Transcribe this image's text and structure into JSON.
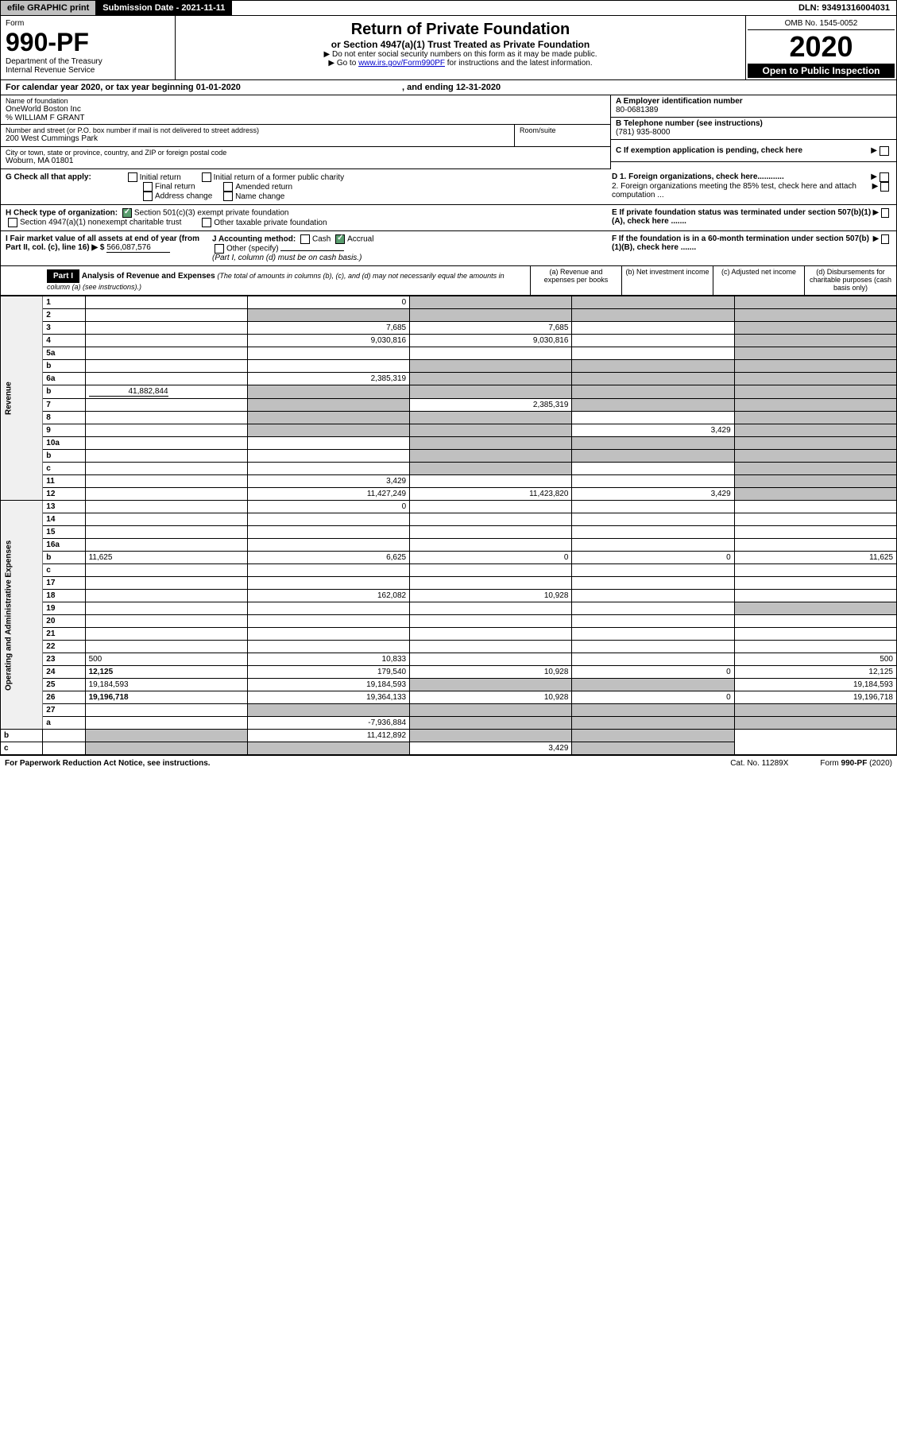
{
  "topbar": {
    "efile": "efile GRAPHIC print",
    "submission": "Submission Date - 2021-11-11",
    "dln": "DLN: 93491316004031"
  },
  "header": {
    "form_word": "Form",
    "form_num": "990-PF",
    "dept": "Department of the Treasury",
    "irs": "Internal Revenue Service",
    "title": "Return of Private Foundation",
    "subtitle": "or Section 4947(a)(1) Trust Treated as Private Foundation",
    "instr1": "▶ Do not enter social security numbers on this form as it may be made public.",
    "instr2_pre": "▶ Go to ",
    "instr2_link": "www.irs.gov/Form990PF",
    "instr2_post": " for instructions and the latest information.",
    "omb": "OMB No. 1545-0052",
    "year": "2020",
    "inspection": "Open to Public Inspection"
  },
  "calyear": {
    "text": "For calendar year 2020, or tax year beginning 01-01-2020",
    "mid": ", and ending 12-31-2020"
  },
  "entity": {
    "name_label": "Name of foundation",
    "name": "OneWorld Boston Inc",
    "co": "% WILLIAM F GRANT",
    "addr_label": "Number and street (or P.O. box number if mail is not delivered to street address)",
    "addr": "200 West Cummings Park",
    "room_label": "Room/suite",
    "city_label": "City or town, state or province, country, and ZIP or foreign postal code",
    "city": "Woburn, MA  01801",
    "a_label": "A Employer identification number",
    "ein": "80-0681389",
    "b_label": "B Telephone number (see instructions)",
    "phone": "(781) 935-8000",
    "c_label": "C If exemption application is pending, check here"
  },
  "checks": {
    "g": "G Check all that apply:",
    "g_opts": [
      "Initial return",
      "Initial return of a former public charity",
      "Final return",
      "Amended return",
      "Address change",
      "Name change"
    ],
    "h": "H Check type of organization:",
    "h1": "Section 501(c)(3) exempt private foundation",
    "h2": "Section 4947(a)(1) nonexempt charitable trust",
    "h3": "Other taxable private foundation",
    "i": "I Fair market value of all assets at end of year (from Part II, col. (c), line 16) ▶ $",
    "i_val": "566,087,576",
    "j": "J Accounting method:",
    "j_cash": "Cash",
    "j_accrual": "Accrual",
    "j_other": "Other (specify)",
    "j_note": "(Part I, column (d) must be on cash basis.)",
    "d1": "D 1. Foreign organizations, check here............",
    "d2": "2. Foreign organizations meeting the 85% test, check here and attach computation ...",
    "e": "E  If private foundation status was terminated under section 507(b)(1)(A), check here .......",
    "f": "F  If the foundation is in a 60-month termination under section 507(b)(1)(B), check here .......",
    "arrow": "▶"
  },
  "part1": {
    "label": "Part I",
    "title": "Analysis of Revenue and Expenses",
    "note": "(The total of amounts in columns (b), (c), and (d) may not necessarily equal the amounts in column (a) (see instructions).)",
    "col_a": "(a) Revenue and expenses per books",
    "col_b": "(b) Net investment income",
    "col_c": "(c) Adjusted net income",
    "col_d": "(d) Disbursements for charitable purposes (cash basis only)"
  },
  "side": {
    "revenue": "Revenue",
    "opex": "Operating and Administrative Expenses"
  },
  "lines": [
    {
      "n": "1",
      "d": "",
      "a": "0",
      "b": "",
      "c": "",
      "sb": true,
      "sc": true,
      "sd": true
    },
    {
      "n": "2",
      "d": "",
      "a": "",
      "b": "",
      "c": "",
      "sa": true,
      "sb": true,
      "sc": true,
      "sd": true,
      "bold_not": true
    },
    {
      "n": "3",
      "d": "",
      "a": "7,685",
      "b": "7,685",
      "c": "",
      "sd": true
    },
    {
      "n": "4",
      "d": "",
      "a": "9,030,816",
      "b": "9,030,816",
      "c": "",
      "sd": true
    },
    {
      "n": "5a",
      "d": "",
      "a": "",
      "b": "",
      "c": "",
      "sd": true
    },
    {
      "n": "b",
      "d": "",
      "a": "",
      "b": "",
      "c": "",
      "sa_line": true,
      "sb": true,
      "sc": true,
      "sd": true
    },
    {
      "n": "6a",
      "d": "",
      "a": "2,385,319",
      "b": "",
      "c": "",
      "sb": true,
      "sc": true,
      "sd": true
    },
    {
      "n": "b",
      "d": "",
      "a": "",
      "b": "",
      "c": "",
      "inline_val": "41,882,844",
      "sa": true,
      "sb": true,
      "sc": true,
      "sd": true
    },
    {
      "n": "7",
      "d": "",
      "a": "",
      "b": "2,385,319",
      "c": "",
      "sa": true,
      "sc": true,
      "sd": true
    },
    {
      "n": "8",
      "d": "",
      "a": "",
      "b": "",
      "c": "",
      "sa": true,
      "sb": true,
      "sd": true
    },
    {
      "n": "9",
      "d": "",
      "a": "",
      "b": "",
      "c": "3,429",
      "sa": true,
      "sb": true,
      "sd": true
    },
    {
      "n": "10a",
      "d": "",
      "a": "",
      "b": "",
      "c": "",
      "sa_line": true,
      "sb": true,
      "sc": true,
      "sd": true
    },
    {
      "n": "b",
      "d": "",
      "a": "",
      "b": "",
      "c": "",
      "sa_line": true,
      "sb": true,
      "sc": true,
      "sd": true
    },
    {
      "n": "c",
      "d": "",
      "a": "",
      "b": "",
      "c": "",
      "sb": true,
      "sd": true
    },
    {
      "n": "11",
      "d": "",
      "a": "3,429",
      "b": "",
      "c": "",
      "sd": true
    },
    {
      "n": "12",
      "d": "",
      "a": "11,427,249",
      "b": "11,423,820",
      "c": "3,429",
      "bold": true,
      "sd": true
    },
    {
      "n": "13",
      "d": "",
      "a": "0",
      "b": "",
      "c": ""
    },
    {
      "n": "14",
      "d": "",
      "a": "",
      "b": "",
      "c": ""
    },
    {
      "n": "15",
      "d": "",
      "a": "",
      "b": "",
      "c": ""
    },
    {
      "n": "16a",
      "d": "",
      "a": "",
      "b": "",
      "c": ""
    },
    {
      "n": "b",
      "d": "11,625",
      "a": "6,625",
      "b": "0",
      "c": "0"
    },
    {
      "n": "c",
      "d": "",
      "a": "",
      "b": "",
      "c": ""
    },
    {
      "n": "17",
      "d": "",
      "a": "",
      "b": "",
      "c": ""
    },
    {
      "n": "18",
      "d": "",
      "a": "162,082",
      "b": "10,928",
      "c": ""
    },
    {
      "n": "19",
      "d": "",
      "a": "",
      "b": "",
      "c": "",
      "sd": true
    },
    {
      "n": "20",
      "d": "",
      "a": "",
      "b": "",
      "c": ""
    },
    {
      "n": "21",
      "d": "",
      "a": "",
      "b": "",
      "c": ""
    },
    {
      "n": "22",
      "d": "",
      "a": "",
      "b": "",
      "c": ""
    },
    {
      "n": "23",
      "d": "500",
      "a": "10,833",
      "b": "",
      "c": ""
    },
    {
      "n": "24",
      "d": "12,125",
      "a": "179,540",
      "b": "10,928",
      "c": "0",
      "bold": true
    },
    {
      "n": "25",
      "d": "19,184,593",
      "a": "19,184,593",
      "b": "",
      "c": "",
      "sb": true,
      "sc": true
    },
    {
      "n": "26",
      "d": "19,196,718",
      "a": "19,364,133",
      "b": "10,928",
      "c": "0",
      "bold": true
    },
    {
      "n": "27",
      "d": "",
      "a": "",
      "b": "",
      "c": "",
      "sa": true,
      "sb": true,
      "sc": true,
      "sd": true
    },
    {
      "n": "a",
      "d": "",
      "a": "-7,936,884",
      "b": "",
      "c": "",
      "bold": true,
      "sb": true,
      "sc": true,
      "sd": true
    },
    {
      "n": "b",
      "d": "",
      "a": "",
      "b": "11,412,892",
      "c": "",
      "bold": true,
      "sa": true,
      "sc": true,
      "sd": true
    },
    {
      "n": "c",
      "d": "",
      "a": "",
      "b": "",
      "c": "3,429",
      "bold": true,
      "sa": true,
      "sb": true,
      "sd": true
    }
  ],
  "footer": {
    "pra": "For Paperwork Reduction Act Notice, see instructions.",
    "cat": "Cat. No. 11289X",
    "form": "Form 990-PF (2020)"
  }
}
